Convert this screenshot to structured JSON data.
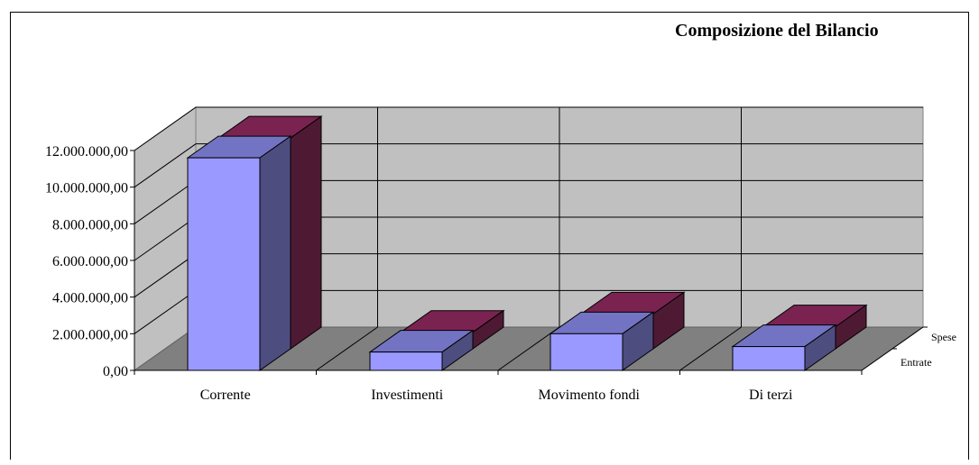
{
  "chart_data": {
    "type": "bar",
    "title": "Composizione del Bilancio",
    "categories": [
      "Corrente",
      "Investimenti",
      "Movimento fondi",
      "Di terzi"
    ],
    "series": [
      {
        "name": "Entrate",
        "values": [
          11600000,
          1000000,
          2000000,
          1300000
        ]
      },
      {
        "name": "Spese",
        "values": [
          11500000,
          900000,
          1900000,
          1200000
        ]
      }
    ],
    "y_ticks": [
      "0,00",
      "2.000.000,00",
      "4.000.000,00",
      "6.000.000,00",
      "8.000.000,00",
      "10.000.000,00",
      "12.000.000,00"
    ],
    "ylim": [
      0,
      12000000
    ],
    "grid": true,
    "legend": "depth axis right"
  },
  "colors": {
    "entrate_front": "#9999ff",
    "entrate_top": "#7373c4",
    "entrate_side": "#4d4d80",
    "spese_front": "#993366",
    "spese_top": "#7a2351",
    "spese_side": "#4e1a33",
    "wall": "#c0c0c0",
    "floor": "#808080"
  }
}
